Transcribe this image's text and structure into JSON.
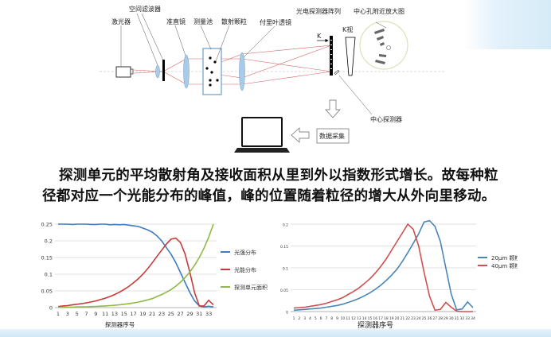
{
  "diagram": {
    "labels": {
      "laser": "激光器",
      "spatial_filter": "空间滤波器",
      "collimator": "准直镜",
      "cell": "测量池",
      "particles": "散射颗粒",
      "fourier_lens": "付里叶透镜",
      "detector_array": "光电探测器阵列",
      "magnified": "中心孔附近放大图",
      "k": "K",
      "k_view": "K视",
      "center_detector": "中心探测器",
      "data_acq": "数据采集"
    }
  },
  "text": {
    "line1": "探测单元的平均散射角及接收面积从里到外以指数形式增长。故每种粒",
    "line2": "径都对应一个光能分布的峰值，峰的位置随着粒径的增大从外向里移动。"
  },
  "chart_data": [
    {
      "type": "line",
      "xlabel": "探测器序号",
      "ylabel": "",
      "x": [
        1,
        2,
        3,
        4,
        5,
        6,
        7,
        8,
        9,
        10,
        11,
        12,
        13,
        14,
        15,
        16,
        17,
        18,
        19,
        20,
        21,
        22,
        23,
        24,
        25,
        26,
        27,
        28,
        29,
        30,
        31,
        32,
        33,
        34
      ],
      "x_tick_labels": [
        "1",
        "3",
        "5",
        "7",
        "9",
        "11",
        "13",
        "15",
        "17",
        "19",
        "21",
        "23",
        "25",
        "27",
        "29",
        "31",
        "33"
      ],
      "y_tick_labels": [
        "0",
        "0.05",
        "0.1",
        "0.15",
        "0.2",
        "0.25"
      ],
      "ylim": [
        0,
        0.25
      ],
      "grid": true,
      "legend": "right",
      "series": [
        {
          "name": "光强分布",
          "color": "#3d7cc0",
          "values": [
            0.25,
            0.25,
            0.25,
            0.249,
            0.25,
            0.25,
            0.25,
            0.249,
            0.249,
            0.25,
            0.25,
            0.248,
            0.249,
            0.248,
            0.249,
            0.247,
            0.245,
            0.243,
            0.238,
            0.233,
            0.226,
            0.215,
            0.2,
            0.18,
            0.16,
            0.135,
            0.105,
            0.075,
            0.045,
            0.02,
            0.005,
            0.002,
            0.004,
            0.002
          ]
        },
        {
          "name": "光能分布",
          "color": "#c83a3a",
          "values": [
            0.003,
            0.005,
            0.006,
            0.008,
            0.01,
            0.012,
            0.014,
            0.017,
            0.02,
            0.024,
            0.028,
            0.033,
            0.039,
            0.046,
            0.054,
            0.063,
            0.074,
            0.086,
            0.1,
            0.116,
            0.134,
            0.153,
            0.172,
            0.19,
            0.205,
            0.208,
            0.195,
            0.16,
            0.105,
            0.045,
            0.005,
            0.005,
            0.022,
            0.008
          ]
        },
        {
          "name": "探测单元面积",
          "color": "#8fba45",
          "values": [
            0.001,
            0.0011,
            0.0013,
            0.0015,
            0.0018,
            0.0021,
            0.0025,
            0.003,
            0.0036,
            0.0042,
            0.005,
            0.006,
            0.007,
            0.0083,
            0.0099,
            0.0117,
            0.0139,
            0.0165,
            0.0195,
            0.023,
            0.027,
            0.033,
            0.039,
            0.046,
            0.054,
            0.064,
            0.076,
            0.09,
            0.107,
            0.127,
            0.15,
            0.178,
            0.211,
            0.25
          ]
        }
      ]
    },
    {
      "type": "line",
      "xlabel": "探测器序号",
      "ylabel": "",
      "x": [
        1,
        2,
        3,
        4,
        5,
        6,
        7,
        8,
        9,
        10,
        11,
        12,
        13,
        14,
        15,
        16,
        17,
        18,
        19,
        20,
        21,
        22,
        23,
        24,
        25,
        26,
        27,
        28,
        29,
        30,
        31,
        32,
        33,
        34
      ],
      "x_tick_labels": [
        "1",
        "2",
        "3",
        "4",
        "5",
        "6",
        "7",
        "8",
        "9",
        "10",
        "11",
        "12",
        "13",
        "14",
        "15",
        "16",
        "17",
        "18",
        "19",
        "20",
        "21",
        "22",
        "23",
        "24",
        "25",
        "26",
        "27",
        "28",
        "29",
        "30",
        "31",
        "32",
        "33",
        "34"
      ],
      "y_tick_labels": [
        "0",
        "0.05",
        "0.1",
        "0.15",
        "0.2"
      ],
      "ylim": [
        0,
        0.2
      ],
      "grid": true,
      "legend": "right",
      "series": [
        {
          "name": "20μm 颗粒",
          "color": "#4a86b8",
          "values": [
            0.003,
            0.004,
            0.005,
            0.006,
            0.007,
            0.008,
            0.01,
            0.012,
            0.014,
            0.017,
            0.021,
            0.025,
            0.03,
            0.036,
            0.043,
            0.051,
            0.06,
            0.071,
            0.083,
            0.097,
            0.115,
            0.135,
            0.156,
            0.178,
            0.205,
            0.208,
            0.195,
            0.16,
            0.1,
            0.04,
            0.004,
            0.006,
            0.022,
            0.009
          ]
        },
        {
          "name": "40μm 颗粒",
          "color": "#d05050",
          "values": [
            0.008,
            0.009,
            0.01,
            0.012,
            0.014,
            0.016,
            0.019,
            0.023,
            0.027,
            0.032,
            0.039,
            0.046,
            0.054,
            0.064,
            0.075,
            0.088,
            0.103,
            0.12,
            0.14,
            0.16,
            0.18,
            0.2,
            0.188,
            0.15,
            0.09,
            0.035,
            0.003,
            0.005,
            0.021,
            0.01,
            0.001,
            0,
            0,
            0
          ]
        }
      ]
    }
  ]
}
